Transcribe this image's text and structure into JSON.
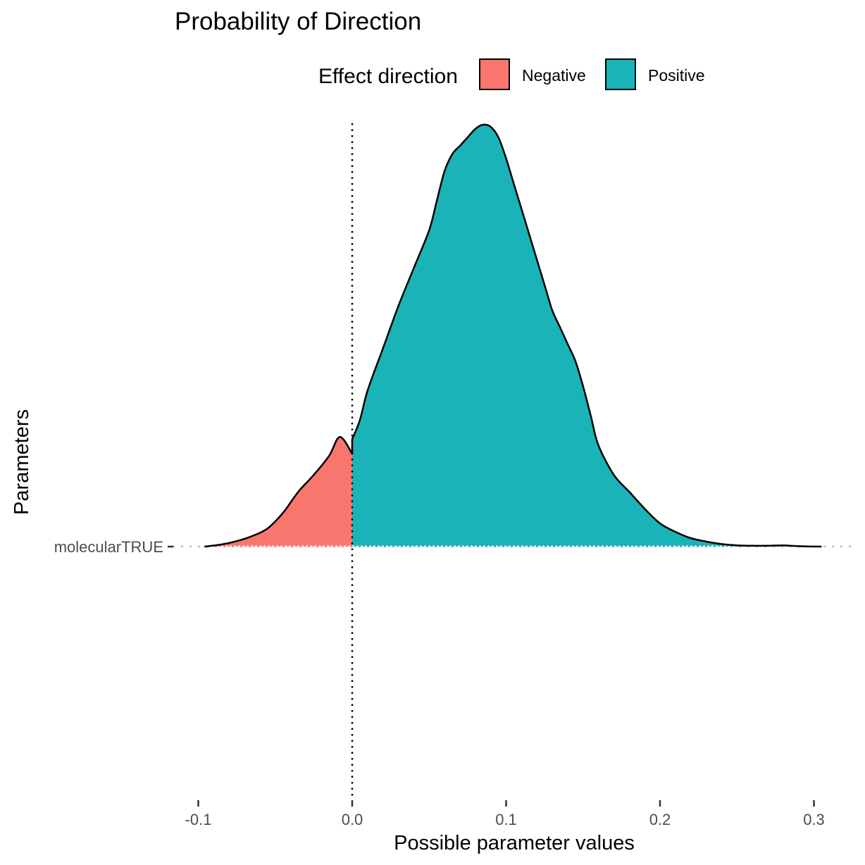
{
  "chart_data": {
    "type": "area",
    "title": "Probability of Direction",
    "xlabel": "Possible parameter values",
    "ylabel": "Parameters",
    "xlim": [
      -0.1,
      0.3
    ],
    "x_ticks": [
      "-0.1",
      "0.0",
      "0.1",
      "0.2",
      "0.3"
    ],
    "x_tick_values": [
      -0.1,
      0.0,
      0.1,
      0.2,
      0.3
    ],
    "categories": [
      "molecularTRUE"
    ],
    "reference_line_x": 0.0,
    "grid": false,
    "legend": {
      "title": "Effect direction",
      "placement": "top",
      "entries": [
        {
          "label": "Negative",
          "color": "#F8766D"
        },
        {
          "label": "Positive",
          "color": "#1AB3B8"
        }
      ]
    },
    "density_max": 1.0,
    "series": [
      {
        "name": "Negative",
        "color": "#F8766D",
        "x": [
          -0.096,
          -0.085,
          -0.075,
          -0.065,
          -0.055,
          -0.045,
          -0.035,
          -0.025,
          -0.015,
          -0.008,
          0.0
        ],
        "y": [
          0.0,
          0.005,
          0.013,
          0.025,
          0.043,
          0.08,
          0.13,
          0.17,
          0.215,
          0.26,
          0.22
        ]
      },
      {
        "name": "Positive",
        "color": "#1AB3B8",
        "x": [
          0.0,
          0.005,
          0.01,
          0.02,
          0.03,
          0.04,
          0.05,
          0.055,
          0.06,
          0.065,
          0.07,
          0.075,
          0.08,
          0.085,
          0.09,
          0.095,
          0.1,
          0.105,
          0.11,
          0.115,
          0.12,
          0.125,
          0.13,
          0.135,
          0.14,
          0.145,
          0.15,
          0.155,
          0.16,
          0.17,
          0.18,
          0.19,
          0.2,
          0.21,
          0.22,
          0.23,
          0.24,
          0.25,
          0.26,
          0.27,
          0.28,
          0.29,
          0.305
        ],
        "y": [
          0.255,
          0.3,
          0.37,
          0.47,
          0.57,
          0.66,
          0.75,
          0.82,
          0.89,
          0.93,
          0.95,
          0.97,
          0.99,
          1.0,
          0.995,
          0.97,
          0.92,
          0.86,
          0.8,
          0.74,
          0.68,
          0.62,
          0.56,
          0.52,
          0.48,
          0.44,
          0.38,
          0.31,
          0.24,
          0.17,
          0.13,
          0.09,
          0.055,
          0.035,
          0.02,
          0.012,
          0.006,
          0.003,
          0.002,
          0.002,
          0.003,
          0.001,
          0.0
        ]
      }
    ]
  }
}
